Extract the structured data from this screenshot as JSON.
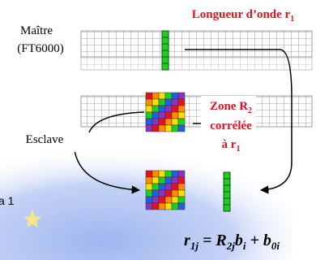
{
  "master": {
    "name": "Maître",
    "model": "(FT6000)"
  },
  "wavelength": {
    "text": "Longueur d’onde r",
    "sub": "1"
  },
  "zone": {
    "line1": "Zone R",
    "line1_sub": "2",
    "line2": "corrélée",
    "line3": "à r",
    "line3_sub": "1"
  },
  "slave": "Esclave",
  "side_text": "a 1",
  "formula": {
    "parts": [
      {
        "t": "r",
        "s": "1j"
      },
      {
        "t": " = "
      },
      {
        "t": "R",
        "s": "2j"
      },
      {
        "t": "b",
        "s": "i"
      },
      {
        "t": " + "
      },
      {
        "t": "b",
        "s": "0i"
      }
    ]
  }
}
